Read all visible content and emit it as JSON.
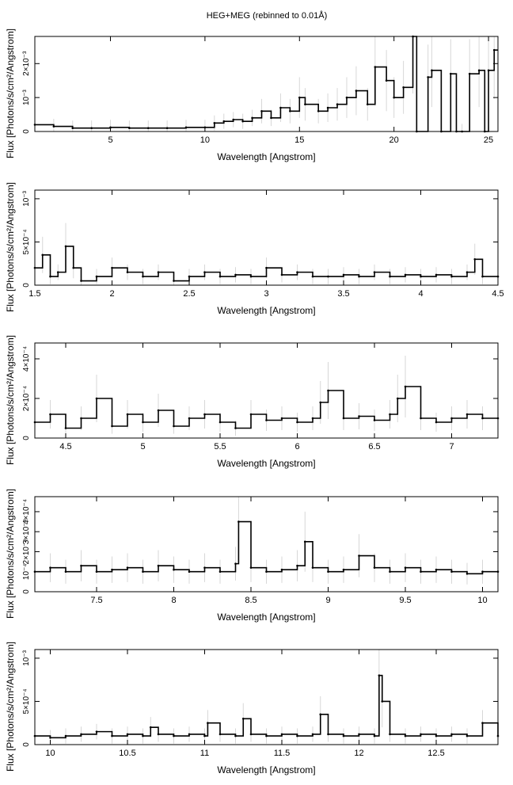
{
  "figure": {
    "title": "HEG+MEG (rebinned to 0.01Å)"
  },
  "chart_data": [
    {
      "type": "line",
      "style": "histogram-steps-with-errorbars",
      "xlabel": "Wavelength [Angstrom]",
      "ylabel": "Flux [Photons/s/cm²/Angstrom]",
      "xlim": [
        1.0,
        25.5
      ],
      "ylim": [
        0,
        0.0028
      ],
      "xticks": [
        5,
        10,
        15,
        20,
        25
      ],
      "xtick_labels": [
        "5",
        "10",
        "15",
        "20",
        "25"
      ],
      "yticks": [
        0,
        0.001,
        0.002
      ],
      "ytick_labels": [
        "0",
        "10⁻³",
        "2×10⁻³"
      ],
      "x": [
        1.0,
        2.0,
        3.0,
        4.0,
        5.0,
        6.0,
        7.0,
        8.0,
        9.0,
        10.0,
        10.5,
        11.0,
        11.5,
        12.0,
        12.5,
        13.0,
        13.5,
        14.0,
        14.5,
        15.0,
        15.3,
        16.0,
        16.5,
        17.0,
        17.5,
        18.0,
        18.6,
        19.0,
        19.6,
        20.0,
        20.5,
        21.0,
        21.2,
        21.8,
        22.0,
        22.5,
        23.0,
        23.3,
        23.6,
        24.0,
        24.5,
        24.8,
        25.0,
        25.3
      ],
      "y": [
        0.0002,
        0.00015,
        0.0001,
        0.0001,
        0.00012,
        0.0001,
        0.0001,
        0.0001,
        0.00012,
        0.00012,
        0.00025,
        0.0003,
        0.00035,
        0.0003,
        0.0004,
        0.0006,
        0.0004,
        0.0007,
        0.0006,
        0.001,
        0.0008,
        0.0006,
        0.0007,
        0.0008,
        0.001,
        0.0012,
        0.0008,
        0.0019,
        0.0015,
        0.001,
        0.0013,
        0.0028,
        0.0,
        0.0016,
        0.0018,
        0.0,
        0.0017,
        0.0,
        0.0,
        0.0017,
        0.0018,
        0.0,
        0.0018,
        0.0024
      ]
    },
    {
      "type": "line",
      "style": "histogram-steps-with-errorbars",
      "xlabel": "Wavelength [Angstrom]",
      "ylabel": "Flux [Photons/s/cm²/Angstrom]",
      "xlim": [
        1.5,
        4.5
      ],
      "ylim": [
        0,
        0.0011
      ],
      "xticks": [
        1.5,
        2,
        2.5,
        3,
        3.5,
        4,
        4.5
      ],
      "xtick_labels": [
        "1.5",
        "2",
        "2.5",
        "3",
        "3.5",
        "4",
        "4.5"
      ],
      "yticks": [
        0,
        0.0005,
        0.001
      ],
      "ytick_labels": [
        "0",
        "5×10⁻⁴",
        "10⁻³"
      ],
      "x": [
        1.5,
        1.55,
        1.6,
        1.65,
        1.7,
        1.75,
        1.8,
        1.9,
        2.0,
        2.1,
        2.2,
        2.3,
        2.4,
        2.5,
        2.6,
        2.7,
        2.8,
        2.9,
        3.0,
        3.1,
        3.2,
        3.3,
        3.4,
        3.5,
        3.6,
        3.7,
        3.8,
        3.9,
        4.0,
        4.1,
        4.2,
        4.3,
        4.35,
        4.4,
        4.5
      ],
      "y": [
        0.0002,
        0.00035,
        0.0001,
        0.00015,
        0.00045,
        0.0002,
        5e-05,
        0.0001,
        0.0002,
        0.00015,
        0.0001,
        0.00015,
        5e-05,
        0.0001,
        0.00015,
        0.0001,
        0.00012,
        0.0001,
        0.0002,
        0.00012,
        0.00015,
        0.0001,
        0.0001,
        0.00012,
        0.0001,
        0.00015,
        0.0001,
        0.00012,
        0.0001,
        0.00012,
        0.0001,
        0.00015,
        0.0003,
        0.0001,
        0.0001
      ]
    },
    {
      "type": "line",
      "style": "histogram-steps-with-errorbars",
      "xlabel": "Wavelength [Angstrom]",
      "ylabel": "Flux [Photons/s/cm²/Angstrom]",
      "xlim": [
        4.3,
        7.3
      ],
      "ylim": [
        0,
        0.00048
      ],
      "xticks": [
        4.5,
        5,
        5.5,
        6,
        6.5,
        7
      ],
      "xtick_labels": [
        "4.5",
        "5",
        "5.5",
        "6",
        "6.5",
        "7"
      ],
      "yticks": [
        0,
        0.0002,
        0.0004
      ],
      "ytick_labels": [
        "0",
        "2×10⁻⁴",
        "4×10⁻⁴"
      ],
      "x": [
        4.3,
        4.4,
        4.5,
        4.6,
        4.7,
        4.8,
        4.9,
        5.0,
        5.1,
        5.2,
        5.3,
        5.4,
        5.5,
        5.6,
        5.7,
        5.8,
        5.9,
        6.0,
        6.1,
        6.15,
        6.2,
        6.3,
        6.4,
        6.5,
        6.6,
        6.65,
        6.7,
        6.8,
        6.9,
        7.0,
        7.1,
        7.2,
        7.3
      ],
      "y": [
        8e-05,
        0.00012,
        5e-05,
        0.0001,
        0.0002,
        6e-05,
        0.00012,
        8e-05,
        0.00014,
        6e-05,
        0.0001,
        0.00012,
        8e-05,
        5e-05,
        0.00012,
        9e-05,
        0.0001,
        8e-05,
        0.0001,
        0.00018,
        0.00024,
        0.0001,
        0.00011,
        9e-05,
        0.00012,
        0.0002,
        0.00026,
        0.0001,
        8e-05,
        0.0001,
        0.00012,
        0.0001,
        0.0001
      ]
    },
    {
      "type": "line",
      "style": "histogram-steps-with-errorbars",
      "xlabel": "Wavelength [Angstrom]",
      "ylabel": "Flux [Photons/s/cm²/Angstrom]",
      "xlim": [
        7.1,
        10.1
      ],
      "ylim": [
        0,
        0.000475
      ],
      "xticks": [
        7.5,
        8,
        8.5,
        9,
        9.5,
        10
      ],
      "xtick_labels": [
        "7.5",
        "8",
        "8.5",
        "9",
        "9.5",
        "10"
      ],
      "yticks": [
        0,
        0.0001,
        0.0002,
        0.0003,
        0.0004
      ],
      "ytick_labels": [
        "0",
        "10⁻⁴",
        "2×10⁻⁴",
        "3×10⁻⁴",
        "4×10⁻⁴"
      ],
      "x": [
        7.1,
        7.2,
        7.3,
        7.4,
        7.5,
        7.6,
        7.7,
        7.8,
        7.9,
        8.0,
        8.1,
        8.2,
        8.3,
        8.4,
        8.42,
        8.5,
        8.6,
        8.7,
        8.8,
        8.85,
        8.9,
        9.0,
        9.1,
        9.2,
        9.3,
        9.4,
        9.5,
        9.6,
        9.7,
        9.8,
        9.9,
        10.0,
        10.1
      ],
      "y": [
        0.0001,
        0.00012,
        0.0001,
        0.00013,
        0.0001,
        0.00011,
        0.00012,
        0.0001,
        0.00013,
        0.00011,
        0.0001,
        0.00012,
        0.0001,
        0.00014,
        0.00035,
        0.00012,
        0.0001,
        0.00011,
        0.00013,
        0.00025,
        0.00012,
        0.0001,
        0.00011,
        0.00018,
        0.00012,
        0.0001,
        0.00012,
        0.0001,
        0.00011,
        0.0001,
        9e-05,
        0.0001,
        0.0001
      ]
    },
    {
      "type": "line",
      "style": "histogram-steps-with-errorbars",
      "xlabel": "Wavelength [Angstrom]",
      "ylabel": "Flux [Photons/s/cm²/Angstrom]",
      "xlim": [
        9.9,
        12.9
      ],
      "ylim": [
        0,
        0.0011
      ],
      "xticks": [
        10,
        10.5,
        11,
        11.5,
        12,
        12.5
      ],
      "xtick_labels": [
        "10",
        "10.5",
        "11",
        "11.5",
        "12",
        "12.5"
      ],
      "yticks": [
        0,
        0.0005,
        0.001
      ],
      "ytick_labels": [
        "0",
        "5×10⁻⁴",
        "10⁻³"
      ],
      "x": [
        9.9,
        10.0,
        10.1,
        10.2,
        10.3,
        10.4,
        10.5,
        10.6,
        10.65,
        10.7,
        10.8,
        10.9,
        11.0,
        11.02,
        11.1,
        11.2,
        11.25,
        11.3,
        11.4,
        11.5,
        11.6,
        11.7,
        11.75,
        11.8,
        11.9,
        12.0,
        12.1,
        12.13,
        12.15,
        12.2,
        12.3,
        12.4,
        12.5,
        12.6,
        12.7,
        12.8,
        12.9
      ],
      "y": [
        0.0001,
        8e-05,
        0.0001,
        0.00012,
        0.00015,
        0.0001,
        0.00012,
        0.0001,
        0.0002,
        0.00012,
        0.0001,
        0.00012,
        0.0001,
        0.00025,
        0.00012,
        0.0001,
        0.0003,
        0.00012,
        0.0001,
        0.00012,
        0.0001,
        0.00012,
        0.00035,
        0.00012,
        0.0001,
        0.00012,
        0.0001,
        0.0008,
        0.0005,
        0.00012,
        0.0001,
        0.00012,
        0.0001,
        0.00012,
        0.0001,
        0.00025,
        0.0001
      ]
    }
  ]
}
